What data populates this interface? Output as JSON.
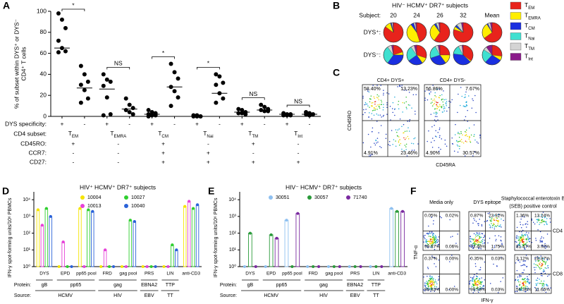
{
  "chart_data": [
    {
      "type": "dot",
      "panel": "A",
      "ylabel": [
        "% of subset within DYS⁺ or DYS⁻",
        "CD4⁺ T cells"
      ],
      "ylim": [
        0,
        100
      ],
      "yticks": [
        0,
        20,
        40,
        60,
        80,
        100
      ],
      "row_labels": [
        "DYS specificity:",
        "CD4 subset:",
        "CD45RO:",
        "CCR7:",
        "CD27:"
      ],
      "groups": [
        {
          "subset": {
            "main": "T",
            "sub": "EM"
          },
          "significance": "*",
          "markers": [
            "+",
            "-",
            "-"
          ],
          "series": [
            {
              "dys": "+",
              "values": [
                98,
                92,
                84,
                72,
                65,
                62,
                61
              ],
              "mean": 65
            },
            {
              "dys": "-",
              "values": [
                48,
                40,
                33,
                30,
                25,
                17,
                13
              ],
              "mean": 27
            }
          ]
        },
        {
          "subset": {
            "main": "T",
            "sub": "EMRA"
          },
          "significance": "NS",
          "markers": [
            "-",
            "-",
            "-"
          ],
          "series": [
            {
              "dys": "+",
              "values": [
                40,
                35,
                33,
                29,
                18,
                2,
                1
              ],
              "mean": 26
            },
            {
              "dys": "-",
              "values": [
                17,
                11,
                8,
                6,
                4,
                2
              ],
              "mean": 7
            }
          ]
        },
        {
          "subset": {
            "main": "T",
            "sub": "CM"
          },
          "significance": "*",
          "markers": [
            "+",
            "+",
            "+"
          ],
          "series": [
            {
              "dys": "+",
              "values": [
                6,
                4,
                3,
                2,
                1,
                1,
                0
              ],
              "mean": 2
            },
            {
              "dys": "-",
              "values": [
                50,
                42,
                36,
                28,
                24,
                18,
                10
              ],
              "mean": 28
            }
          ]
        },
        {
          "subset": {
            "main": "T",
            "sub": "Nai"
          },
          "significance": "*",
          "markers": [
            "-",
            "+",
            "+"
          ],
          "series": [
            {
              "dys": "+",
              "values": [
                1,
                1,
                0,
                0,
                0,
                0
              ],
              "mean": 0
            },
            {
              "dys": "-",
              "values": [
                40,
                38,
                32,
                30,
                22,
                17,
                13
              ],
              "mean": 22
            }
          ]
        },
        {
          "subset": {
            "main": "T",
            "sub": "TM"
          },
          "significance": "NS",
          "markers": [
            "+",
            "-",
            "+"
          ],
          "series": [
            {
              "dys": "+",
              "values": [
                7,
                6,
                4,
                3,
                3,
                2
              ],
              "mean": 4
            },
            {
              "dys": "-",
              "values": [
                11,
                9,
                7,
                6,
                5,
                5
              ],
              "mean": 6
            }
          ]
        },
        {
          "subset": {
            "main": "T",
            "sub": "Int"
          },
          "significance": "NS",
          "markers": [
            "-",
            "-",
            "+"
          ],
          "series": [
            {
              "dys": "+",
              "values": [
                3,
                2,
                2,
                1,
                1,
                1
              ],
              "mean": 2
            },
            {
              "dys": "-",
              "values": [
                4,
                3,
                2,
                2,
                1
              ],
              "mean": 2
            }
          ]
        }
      ]
    },
    {
      "type": "pie-grid",
      "panel": "B",
      "title": "HIV⁻ HCMV⁺ DR7⁺ subjects",
      "subject_label": "Subject:",
      "subjects": [
        "20",
        "24",
        "26",
        "32",
        "Mean"
      ],
      "rows": [
        {
          "name": "DYS⁺:",
          "pies": [
            [
              85,
              10,
              2,
              0,
              2,
              1
            ],
            [
              45,
              45,
              5,
              0,
              3,
              2
            ],
            [
              60,
              30,
              3,
              1,
              4,
              2
            ],
            [
              80,
              5,
              3,
              1,
              8,
              3
            ],
            [
              65,
              26,
              2,
              0,
              4,
              3
            ]
          ]
        },
        {
          "name": "DYS⁻:",
          "pies": [
            [
              20,
              5,
              35,
              30,
              7,
              3
            ],
            [
              30,
              10,
              25,
              25,
              6,
              4
            ],
            [
              25,
              15,
              30,
              22,
              5,
              3
            ],
            [
              35,
              2,
              40,
              15,
              6,
              2
            ],
            [
              27,
              7,
              28,
              22,
              6,
              10
            ]
          ]
        }
      ],
      "legend": [
        {
          "name": {
            "main": "T",
            "sub": "EM"
          },
          "color": "#e8231c"
        },
        {
          "name": {
            "main": "T",
            "sub": "EMRA"
          },
          "color": "#ffee00"
        },
        {
          "name": {
            "main": "T",
            "sub": "CM"
          },
          "color": "#1a2fe0"
        },
        {
          "name": {
            "main": "T",
            "sub": "Nai"
          },
          "color": "#3fe0d0"
        },
        {
          "name": {
            "main": "T",
            "sub": "TM"
          },
          "color": "#d4d4d4"
        },
        {
          "name": {
            "main": "T",
            "sub": "Int"
          },
          "color": "#8a1a8a"
        }
      ]
    },
    {
      "type": "flow",
      "panel": "C",
      "ylabel": "CD45RO",
      "xlabel": "CD45RA",
      "plots": [
        {
          "title": "CD4+ DYS+",
          "quadrants": [
            58.4,
            13.23,
            4.91,
            23.46
          ],
          "value_labels": [
            "58.40%",
            "13.23%",
            "4.91%",
            "23.46%"
          ]
        },
        {
          "title": "CD4+ DYS-",
          "quadrants": [
            56.86,
            7.67,
            4.9,
            30.57
          ],
          "value_labels": [
            "56.86%",
            "7.67%",
            "4.90%",
            "30.57%"
          ]
        }
      ]
    },
    {
      "type": "bar",
      "panel": "D",
      "title": "HIV⁺ HCMV⁺ DR7⁺ subjects",
      "ylabel": "IFN-γ spot-forming units/10⁶ PBMCs",
      "log": true,
      "ylim": [
        1,
        20000
      ],
      "yticks": [
        {
          "value": 1,
          "label": "10⁰"
        },
        {
          "value": 10,
          "label": "10¹"
        },
        {
          "value": 100,
          "label": "10²"
        },
        {
          "value": 1000,
          "label": "10³"
        },
        {
          "value": 10000,
          "label": "10⁴"
        }
      ],
      "protein_label": "Protein:",
      "source_label": "Source:",
      "sources": [
        {
          "name": "HCMV",
          "proteins": [
            {
              "name": "gB",
              "categories": [
                "DYS"
              ]
            },
            {
              "name": "pp65",
              "categories": [
                "EPD",
                "pp65 pool"
              ]
            }
          ]
        },
        {
          "name": "HIV",
          "proteins": [
            {
              "name": "gag",
              "categories": [
                "FRD",
                "gag pool"
              ]
            }
          ]
        },
        {
          "name": "EBV",
          "proteins": [
            {
              "name": "EBNA2",
              "categories": [
                "PRS"
              ]
            }
          ]
        },
        {
          "name": "TT",
          "proteins": [
            {
              "name": "TTP",
              "categories": [
                "LIN"
              ]
            }
          ]
        },
        {
          "name": null,
          "proteins": [
            {
              "name": null,
              "categories": [
                "anti-CD3"
              ]
            }
          ]
        }
      ],
      "series": [
        {
          "name": "10004",
          "color": "#f5e400",
          "values": [
            2500,
            1,
            3000,
            1,
            1,
            1,
            1,
            4000
          ]
        },
        {
          "name": "10013",
          "color": "#e642d8",
          "values": [
            300,
            30,
            1,
            10,
            1,
            1,
            1,
            8000
          ]
        },
        {
          "name": "10027",
          "color": "#2fcf2f",
          "values": [
            3000,
            1,
            2500,
            1,
            600,
            1,
            20,
            3000
          ]
        },
        {
          "name": "10040",
          "color": "#2a62d8",
          "values": [
            1000,
            1,
            2000,
            1,
            500,
            1,
            10,
            5000
          ]
        }
      ]
    },
    {
      "type": "bar",
      "panel": "E",
      "title": "HIV⁻ HCMV⁺ DR7⁺ subjects",
      "ylabel": "IFN-γ spot-forming units/10⁶ PBMCs",
      "log": true,
      "ylim": [
        1,
        20000
      ],
      "yticks": [
        {
          "value": 1,
          "label": "10⁰"
        },
        {
          "value": 10,
          "label": "10¹"
        },
        {
          "value": 100,
          "label": "10²"
        },
        {
          "value": 1000,
          "label": "10³"
        },
        {
          "value": 10000,
          "label": "10⁴"
        }
      ],
      "protein_label": "Protein:",
      "source_label": "Source:",
      "sources": [
        {
          "name": "HCMV",
          "proteins": [
            {
              "name": "gB",
              "categories": [
                "DYS"
              ]
            },
            {
              "name": "pp65",
              "categories": [
                "EPD",
                "pp65 pool"
              ]
            }
          ]
        },
        {
          "name": "HIV",
          "proteins": [
            {
              "name": "gag",
              "categories": [
                "FRD",
                "gag pool"
              ]
            }
          ]
        },
        {
          "name": "EBV",
          "proteins": [
            {
              "name": "EBNA2",
              "categories": [
                "PRS"
              ]
            }
          ]
        },
        {
          "name": "TT",
          "proteins": [
            {
              "name": "TTP",
              "categories": [
                "LIN"
              ]
            }
          ]
        },
        {
          "name": null,
          "proteins": [
            {
              "name": null,
              "categories": [
                "anti-CD3"
              ]
            }
          ]
        }
      ],
      "series": [
        {
          "name": "30051",
          "color": "#8ec0f0",
          "values": [
            1,
            1,
            600,
            1,
            1,
            1,
            1,
            3000
          ]
        },
        {
          "name": "30057",
          "color": "#2a9a3a",
          "values": [
            100,
            80,
            1,
            1,
            1,
            1,
            1,
            2000
          ]
        },
        {
          "name": "71740",
          "color": "#7a2aa0",
          "values": [
            1,
            50,
            1500,
            1,
            1,
            1,
            1,
            2000
          ]
        }
      ]
    },
    {
      "type": "flow",
      "panel": "F",
      "ylabel": "TNF-α",
      "xlabel": "IFN-γ",
      "column_titles": [
        [
          "Media only"
        ],
        [
          "DYS epitope"
        ],
        [
          "Staphylococcal enterotoxin B",
          "(SEB) positive control"
        ]
      ],
      "row_labels": [
        "CD4",
        "CD8"
      ],
      "plots": [
        {
          "quadrants": [
            0.05,
            0.02,
            99.87,
            0.06
          ],
          "value_labels": [
            "0.05%",
            "0.02%",
            "99.87%",
            "0.06%"
          ]
        },
        {
          "quadrants": [
            0.87,
            23.92,
            73.46,
            1.75
          ],
          "value_labels": [
            "0.87%",
            "23.92%",
            "73.46%",
            "1.75%"
          ]
        },
        {
          "quadrants": [
            1.36,
            13.24,
            81.47,
            3.92
          ],
          "value_labels": [
            "1.36%",
            "13.24%",
            "81.47%",
            "3.92%"
          ]
        },
        {
          "quadrants": [
            0.37,
            0.0,
            99.63,
            0.0
          ],
          "value_labels": [
            "0.37%",
            "0.00%",
            "99.63%",
            "0.00%"
          ]
        },
        {
          "quadrants": [
            0.35,
            0.03,
            99.59,
            0.03
          ],
          "value_labels": [
            "0.35%",
            "0.03%",
            "99.59%",
            "0.03%"
          ]
        },
        {
          "quadrants": [
            3.12,
            28.87,
            56.36,
            11.65
          ],
          "value_labels": [
            "3.12%",
            "28.87%",
            "56.36%",
            "11.65%"
          ]
        }
      ]
    }
  ]
}
